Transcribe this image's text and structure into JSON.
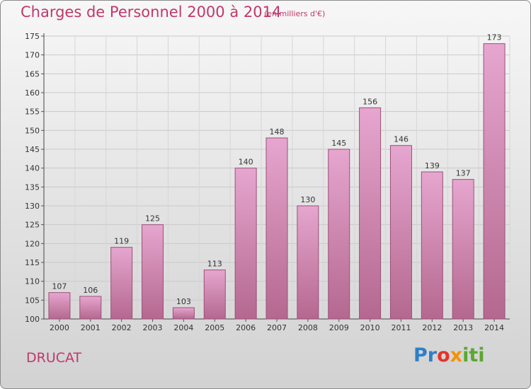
{
  "header": {
    "title": "Charges de Personnel 2000 à 2014",
    "subtitle": "(en milliers d'€)"
  },
  "commune": "DRUCAT",
  "logo": {
    "parts": [
      "Pr",
      "o",
      "x",
      "iti"
    ]
  },
  "colors": {
    "accent": "#c0386b",
    "bar_top": "#e6a6cf",
    "bar_bottom": "#b4688f",
    "bar_stroke": "#9b5078"
  },
  "chart_data": {
    "type": "bar",
    "title": "Charges de Personnel 2000 à 2014",
    "subtitle": "(en milliers d'€)",
    "xlabel": "",
    "ylabel": "",
    "categories": [
      "2000",
      "2001",
      "2002",
      "2003",
      "2004",
      "2005",
      "2006",
      "2007",
      "2008",
      "2009",
      "2010",
      "2011",
      "2012",
      "2013",
      "2014"
    ],
    "values": [
      107,
      106,
      119,
      125,
      103,
      113,
      140,
      148,
      130,
      145,
      156,
      146,
      139,
      137,
      173
    ],
    "ylim": [
      100,
      175
    ],
    "yticks": [
      100,
      105,
      110,
      115,
      120,
      125,
      130,
      135,
      140,
      145,
      150,
      155,
      160,
      165,
      170,
      175
    ],
    "grid": true,
    "legend": "none"
  }
}
